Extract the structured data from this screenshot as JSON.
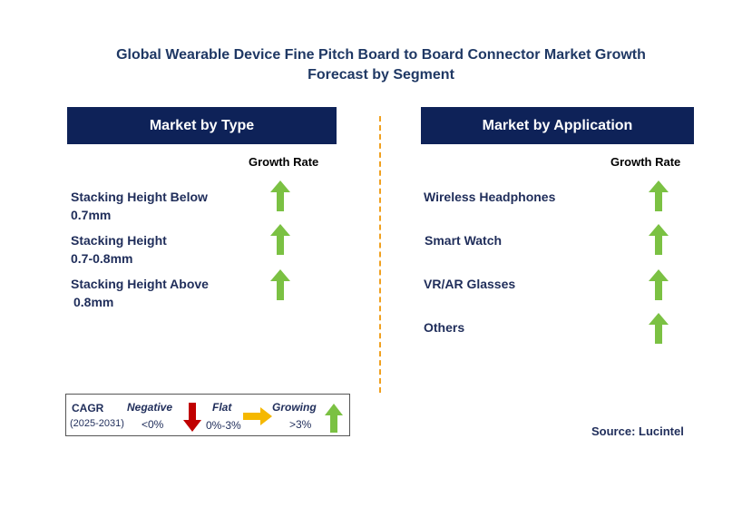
{
  "title": {
    "line1": "Global Wearable Device Fine Pitch Board to Board Connector Market Growth",
    "line2": "Forecast by Segment"
  },
  "type_panel": {
    "header": "Market by Type",
    "growth_label": "Growth Rate",
    "segments": [
      {
        "line1": "Stacking Height Below",
        "line2": "0.7mm",
        "trend": "growing"
      },
      {
        "line1": "Stacking Height",
        "line2": "0.7-0.8mm",
        "trend": "growing"
      },
      {
        "line1": "Stacking Height Above",
        "line2": "0.8mm",
        "trend": "growing"
      }
    ]
  },
  "application_panel": {
    "header": "Market by Application",
    "growth_label": "Growth Rate",
    "segments": [
      {
        "label": "Wireless Headphones",
        "trend": "growing"
      },
      {
        "label": "Smart Watch",
        "trend": "growing"
      },
      {
        "label": "VR/AR Glasses",
        "trend": "growing"
      },
      {
        "label": "Others",
        "trend": "growing"
      }
    ]
  },
  "legend": {
    "cagr": "CAGR",
    "period": "(2025-2031)",
    "negative_label": "Negative",
    "negative_range": "<0%",
    "flat_label": "Flat",
    "flat_range": "0%-3%",
    "growing_label": "Growing",
    "growing_range": ">3%"
  },
  "source": "Source: Lucintel",
  "colors": {
    "header_bg": "#0e2258",
    "growing": "#7bc143",
    "negative": "#c00000",
    "flat": "#f5b800",
    "divider": "#f0a020"
  },
  "icons": {
    "growing": "arrow-up-icon",
    "negative": "arrow-down-icon",
    "flat": "arrow-right-icon"
  }
}
